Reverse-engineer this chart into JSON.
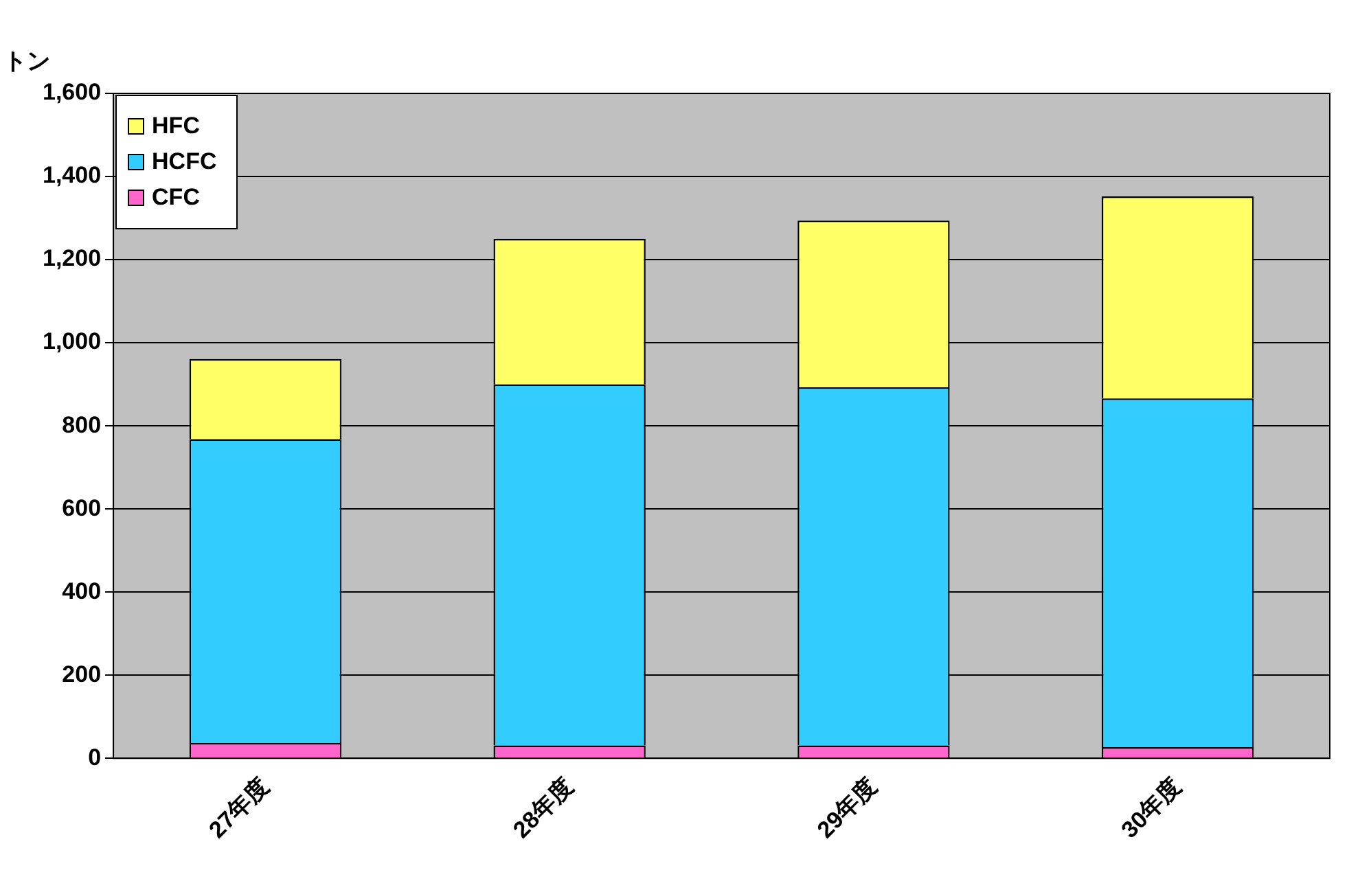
{
  "chart_data": {
    "type": "bar",
    "stacked": true,
    "ylabel": "トン",
    "categories": [
      "27年度",
      "28年度",
      "29年度",
      "30年度"
    ],
    "series": [
      {
        "name": "CFC",
        "color": "#ff66cc",
        "values": [
          37,
          31,
          31,
          27
        ]
      },
      {
        "name": "HCFC",
        "color": "#33ccff",
        "values": [
          731,
          869,
          862,
          839
        ]
      },
      {
        "name": "HFC",
        "color": "#ffff66",
        "values": [
          193,
          350,
          401,
          486
        ]
      }
    ],
    "ylim": [
      0,
      1600
    ],
    "yticks": [
      0,
      200,
      400,
      600,
      800,
      {
        "value": 1000,
        "label": "1,000"
      },
      {
        "value": 1200,
        "label": "1,200"
      },
      {
        "value": 1400,
        "label": "1,400"
      },
      {
        "value": 1600,
        "label": "1,600"
      }
    ],
    "grid": "y",
    "legend": "top left"
  }
}
